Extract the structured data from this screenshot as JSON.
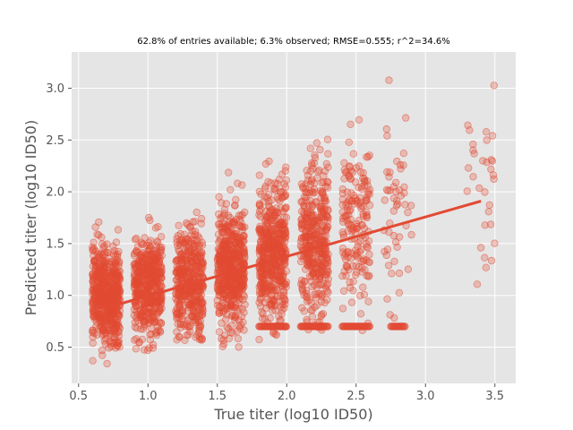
{
  "chart_data": {
    "type": "scatter",
    "title": "62.8% of entries available; 6.3% observed; RMSE=0.555; r^2=34.6%",
    "xlabel": "True titer (log10 ID50)",
    "ylabel": "Predicted titer (log10 ID50)",
    "xlim": [
      0.45,
      3.65
    ],
    "ylim": [
      0.15,
      3.35
    ],
    "xticks": [
      0.5,
      1.0,
      1.5,
      2.0,
      2.5,
      3.0,
      3.5
    ],
    "xtick_labels": [
      "0.5",
      "1.0",
      "1.5",
      "2.0",
      "2.5",
      "3.0",
      "3.5"
    ],
    "yticks": [
      0.5,
      1.0,
      1.5,
      2.0,
      2.5,
      3.0
    ],
    "ytick_labels": [
      "0.5",
      "1.0",
      "1.5",
      "2.0",
      "2.5",
      "3.0"
    ],
    "grid": true,
    "background": "#e5e5e5",
    "series_color": "#e24a33",
    "clusters": [
      {
        "x_center": 0.7,
        "x_jitter": 0.1,
        "y_mean": 1.0,
        "y_sd": 0.22,
        "y_min": 0.32,
        "y_max": 2.12,
        "approx_points": 1600
      },
      {
        "x_center": 1.0,
        "x_jitter": 0.1,
        "y_mean": 1.08,
        "y_sd": 0.24,
        "y_min": 0.45,
        "y_max": 2.17,
        "approx_points": 1300
      },
      {
        "x_center": 1.3,
        "x_jitter": 0.1,
        "y_mean": 1.12,
        "y_sd": 0.26,
        "y_min": 0.55,
        "y_max": 2.22,
        "approx_points": 1200
      },
      {
        "x_center": 1.6,
        "x_jitter": 0.1,
        "y_mean": 1.25,
        "y_sd": 0.28,
        "y_min": 0.45,
        "y_max": 2.6,
        "approx_points": 1500
      },
      {
        "x_center": 1.9,
        "x_jitter": 0.1,
        "y_mean": 1.4,
        "y_sd": 0.32,
        "y_min": 0.37,
        "y_max": 2.8,
        "approx_points": 1400
      },
      {
        "x_center": 2.2,
        "x_jitter": 0.1,
        "y_mean": 1.55,
        "y_sd": 0.35,
        "y_min": 0.65,
        "y_max": 2.97,
        "approx_points": 1100
      },
      {
        "x_center": 2.5,
        "x_jitter": 0.1,
        "y_mean": 1.7,
        "y_sd": 0.38,
        "y_min": 0.65,
        "y_max": 2.75,
        "approx_points": 500
      },
      {
        "x_center": 2.8,
        "x_jitter": 0.1,
        "y_mean": 1.75,
        "y_sd": 0.5,
        "y_min": 0.68,
        "y_max": 3.15,
        "approx_points": 150
      },
      {
        "x_center": 3.4,
        "x_jitter": 0.1,
        "y_mean": 1.95,
        "y_sd": 0.55,
        "y_min": 0.85,
        "y_max": 3.2,
        "approx_points": 90
      }
    ],
    "floor_line": {
      "y": 0.7,
      "x_ranges": [
        [
          1.8,
          2.0
        ],
        [
          2.1,
          2.3
        ],
        [
          2.4,
          2.6
        ],
        [
          2.75,
          2.85
        ]
      ]
    },
    "regression_line": {
      "x_start": 0.7,
      "y_start": 0.88,
      "x_end": 3.4,
      "y_end": 1.91
    }
  }
}
